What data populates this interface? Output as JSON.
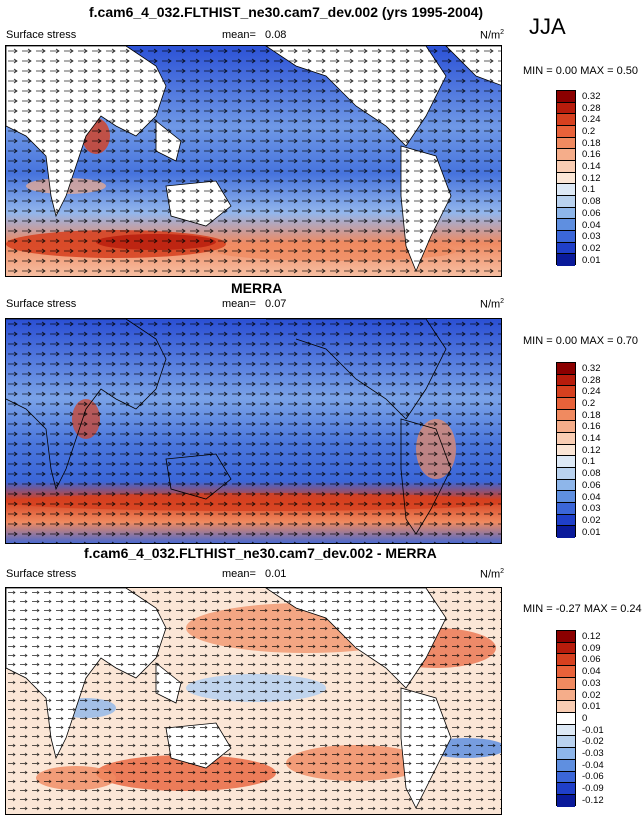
{
  "season": "JJA",
  "panels": [
    {
      "title": "f.cam6_4_032.FLTHIST_ne30.cam7_dev.002 (yrs 1995-2004)",
      "variable": "Surface stress",
      "mean_label": "mean=",
      "mean": "0.08",
      "units": "N/m",
      "units_exp": "2",
      "min_label": "MIN =",
      "min": "0.00",
      "max_label": "MAX =",
      "max": "0.50",
      "colorbar": {
        "labels": [
          "0.32",
          "0.28",
          "0.24",
          "0.2",
          "0.18",
          "0.16",
          "0.14",
          "0.12",
          "0.1",
          "0.08",
          "0.06",
          "0.04",
          "0.03",
          "0.02",
          "0.01"
        ],
        "colors": [
          "#8b0000",
          "#b71c0c",
          "#d6401f",
          "#e8623a",
          "#f08a60",
          "#f5ad8a",
          "#f9cdb3",
          "#fbe6d6",
          "#dde9f6",
          "#b9d2ef",
          "#8eb6ea",
          "#5f8fe0",
          "#3b66d8",
          "#1f3fc9",
          "#0a1a9a"
        ]
      }
    },
    {
      "title": "MERRA",
      "variable": "Surface stress",
      "mean_label": "mean=",
      "mean": "0.07",
      "units": "N/m",
      "units_exp": "2",
      "min_label": "MIN =",
      "min": "0.00",
      "max_label": "MAX =",
      "max": "0.70",
      "colorbar": {
        "labels": [
          "0.32",
          "0.28",
          "0.24",
          "0.2",
          "0.18",
          "0.16",
          "0.14",
          "0.12",
          "0.1",
          "0.08",
          "0.06",
          "0.04",
          "0.03",
          "0.02",
          "0.01"
        ],
        "colors": [
          "#8b0000",
          "#b71c0c",
          "#d6401f",
          "#e8623a",
          "#f08a60",
          "#f5ad8a",
          "#f9cdb3",
          "#fbe6d6",
          "#dde9f6",
          "#b9d2ef",
          "#8eb6ea",
          "#5f8fe0",
          "#3b66d8",
          "#1f3fc9",
          "#0a1a9a"
        ]
      }
    },
    {
      "title": "f.cam6_4_032.FLTHIST_ne30.cam7_dev.002 - MERRA",
      "variable": "Surface stress",
      "mean_label": "mean=",
      "mean": "0.01",
      "units": "N/m",
      "units_exp": "2",
      "min_label": "MIN =",
      "min": "-0.27",
      "max_label": "MAX =",
      "max": "0.24",
      "colorbar": {
        "labels": [
          "0.12",
          "0.09",
          "0.06",
          "0.04",
          "0.03",
          "0.02",
          "0.01",
          "0",
          "-0.01",
          "-0.02",
          "-0.03",
          "-0.04",
          "-0.06",
          "-0.09",
          "-0.12"
        ],
        "colors": [
          "#8b0000",
          "#b71c0c",
          "#d6401f",
          "#e8623a",
          "#f08a60",
          "#f5ad8a",
          "#f9cdb3",
          "#ffffff",
          "#dde9f6",
          "#b9d2ef",
          "#8eb6ea",
          "#5f8fe0",
          "#3b66d8",
          "#1f3fc9",
          "#0a1a9a"
        ]
      }
    }
  ]
}
